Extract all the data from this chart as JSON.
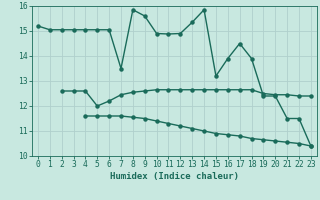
{
  "background_color": "#c8e8e0",
  "grid_color": "#b0d0cc",
  "line_color": "#1a6b5a",
  "xlim": [
    -0.5,
    23.5
  ],
  "ylim": [
    10,
    16
  ],
  "xlabel": "Humidex (Indice chaleur)",
  "yticks": [
    10,
    11,
    12,
    13,
    14,
    15,
    16
  ],
  "xticks": [
    0,
    1,
    2,
    3,
    4,
    5,
    6,
    7,
    8,
    9,
    10,
    11,
    12,
    13,
    14,
    15,
    16,
    17,
    18,
    19,
    20,
    21,
    22,
    23
  ],
  "curve1_x": [
    0,
    1,
    2,
    3,
    4,
    5,
    6,
    7,
    8,
    9,
    10,
    11,
    12,
    13,
    14,
    15,
    16,
    17,
    18,
    19,
    20,
    21,
    22,
    23
  ],
  "curve1_y": [
    15.2,
    15.05,
    15.05,
    15.05,
    15.05,
    15.05,
    15.05,
    13.5,
    15.85,
    15.6,
    14.9,
    14.88,
    14.9,
    15.35,
    15.85,
    13.2,
    13.9,
    14.5,
    13.9,
    12.4,
    12.4,
    11.5,
    11.5,
    10.4
  ],
  "curve2_x": [
    2,
    3,
    4,
    5,
    6,
    7,
    8,
    9,
    10,
    11,
    12,
    13,
    14,
    15,
    16,
    17,
    18,
    19,
    20,
    21,
    22,
    23
  ],
  "curve2_y": [
    12.6,
    12.6,
    12.6,
    12.0,
    12.2,
    12.45,
    12.55,
    12.6,
    12.65,
    12.65,
    12.65,
    12.65,
    12.65,
    12.65,
    12.65,
    12.65,
    12.65,
    12.5,
    12.45,
    12.45,
    12.4,
    12.4
  ],
  "curve3_x": [
    4,
    5,
    6,
    7,
    8,
    9,
    10,
    11,
    12,
    13,
    14,
    15,
    16,
    17,
    18,
    19,
    20,
    21,
    22,
    23
  ],
  "curve3_y": [
    11.6,
    11.6,
    11.6,
    11.6,
    11.55,
    11.5,
    11.4,
    11.3,
    11.2,
    11.1,
    11.0,
    10.9,
    10.85,
    10.8,
    10.7,
    10.65,
    10.6,
    10.55,
    10.5,
    10.4
  ],
  "markersize": 2.2,
  "linewidth": 1.0,
  "tick_fontsize": 5.8,
  "xlabel_fontsize": 6.5
}
